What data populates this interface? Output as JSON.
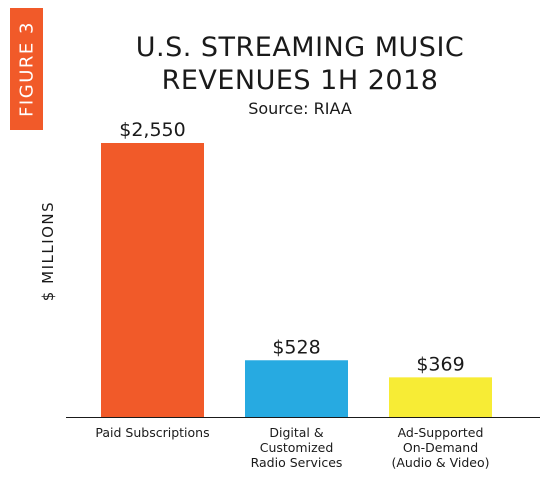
{
  "figure_tag": "FIGURE 3",
  "chart_data": {
    "type": "bar",
    "title_lines": [
      "U.S. STREAMING MUSIC",
      "REVENUES 1H 2018"
    ],
    "subtitle": "Source: RIAA",
    "xlabel": "",
    "ylabel": "$ MILLIONS",
    "ylim": [
      0,
      2550
    ],
    "grid": false,
    "categories": [
      [
        "Paid Subscriptions"
      ],
      [
        "Digital &",
        "Customized",
        "Radio Services"
      ],
      [
        "Ad-Supported",
        "On-Demand",
        "(Audio & Video)"
      ]
    ],
    "values": [
      2550,
      528,
      369
    ],
    "value_labels": [
      "$2,550",
      "$528",
      "$369"
    ],
    "colors": [
      "#f15a29",
      "#27aae1",
      "#f7ec35"
    ]
  }
}
